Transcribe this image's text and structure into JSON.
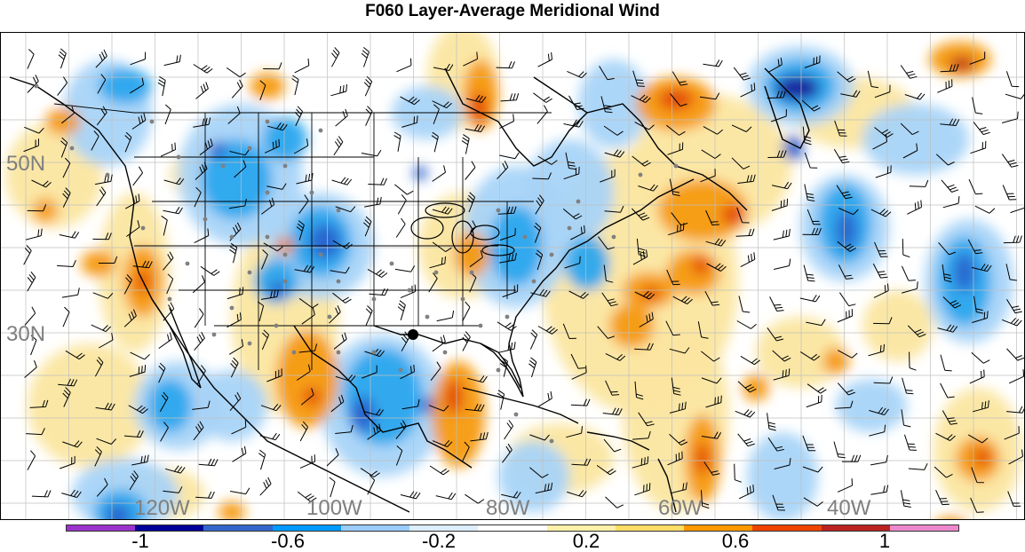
{
  "title": "F060 Layer-Average Meridional Wind",
  "lat_labels": [
    "50N",
    "30N"
  ],
  "lon_labels": [
    "120W",
    "100W",
    "80W",
    "60W",
    "40W"
  ],
  "colorbar": {
    "colors": [
      "#9933cc",
      "#000099",
      "#3366cc",
      "#0099ff",
      "#99ccff",
      "#ddeeff",
      "#ffffff",
      "#fff0aa",
      "#ffdd66",
      "#ff9900",
      "#ee4400",
      "#bb2222",
      "#ee88cc"
    ],
    "tick_labels": [
      "-1",
      "-0.6",
      "-0.2",
      "0.2",
      "0.6",
      "1"
    ]
  },
  "colors": {
    "ocean": "#ffffff",
    "coast": "#000000",
    "grid": "#bfbfbf",
    "station": "#808080",
    "label": "#7f7f7f",
    "barb": "#000000"
  },
  "icons": {
    "wind_barb": "wind-barb-icon",
    "station_dot": "station-dot-icon",
    "marker": "city-marker-icon"
  }
}
